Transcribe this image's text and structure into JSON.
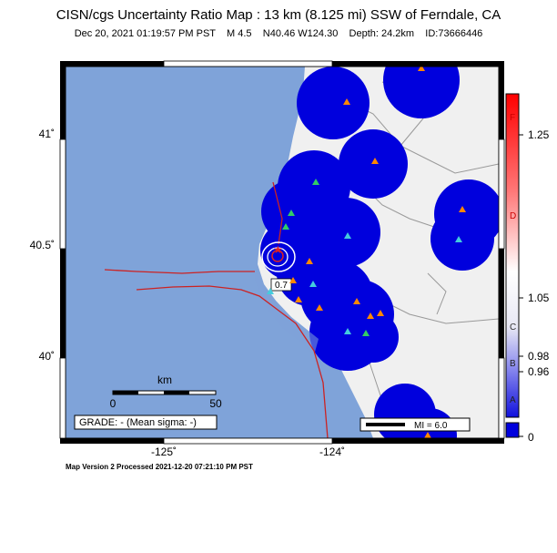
{
  "header": {
    "title": "CISN/cgs Uncertainty Ratio Map : 13 km (8.125 mi) SSW of Ferndale, CA",
    "subtitle": "Dec 20, 2021 01:19:57 PM PST    M 4.5    N40.46 W124.30    Depth: 24.2km    ID:73666446"
  },
  "footer": {
    "version": "Map Version 2 Processed 2021-12-20 07:21:10 PM PST"
  },
  "map": {
    "lat_labels": [
      "41˚",
      "40.5˚",
      "40˚"
    ],
    "lon_labels": [
      "-125˚",
      "-124˚"
    ],
    "scale_title": "km",
    "scale_min": "0",
    "scale_max": "50",
    "grade": "GRADE: - (Mean sigma: -)",
    "mi_legend": "MI = 6.0",
    "contour_label": "0.7",
    "colors": {
      "ocean": "#7fa3d9",
      "land": "#f0f0f0",
      "station_blue": "#0000dd",
      "fault": "#cc2222",
      "border": "#999999"
    }
  },
  "colorbar": {
    "values": [
      "1.25",
      "1.05",
      "0.98",
      "0.96",
      "0"
    ],
    "letters": [
      "F",
      "D",
      "C",
      "B",
      "A"
    ]
  }
}
